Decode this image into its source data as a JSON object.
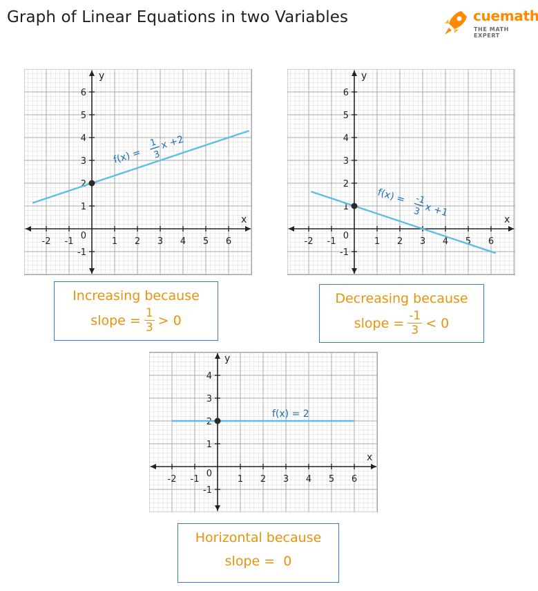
{
  "title": "Graph of Linear Equations in two Variables",
  "logo": {
    "name": "cuemath",
    "tagline": "THE MATH EXPERT",
    "icon": "rocket-icon",
    "color": "#ff8a00"
  },
  "graphs": [
    {
      "id": "increasing",
      "x_label": "x",
      "y_label": "y",
      "origin_label": "0",
      "x_ticks": [
        "-2",
        "-1",
        "1",
        "2",
        "3",
        "4",
        "5",
        "6"
      ],
      "y_ticks": [
        "-1",
        "1",
        "2",
        "3",
        "4",
        "5",
        "6"
      ],
      "equation": {
        "prefix": "f(x) =",
        "num": "1",
        "den": "3",
        "suffix": "x +2"
      },
      "line": {
        "slope": 0.3333,
        "intercept": 2,
        "x_from": -2.6,
        "x_to": 6.9
      },
      "point": [
        0,
        2
      ],
      "box": {
        "line1": "Increasing because",
        "prefix": "slope =",
        "num": "1",
        "den": "3",
        "suffix": "> 0"
      }
    },
    {
      "id": "decreasing",
      "x_label": "x",
      "y_label": "y",
      "origin_label": "0",
      "x_ticks": [
        "-2",
        "-1",
        "1",
        "2",
        "3",
        "4",
        "5",
        "6"
      ],
      "y_ticks": [
        "-1",
        "1",
        "2",
        "3",
        "4",
        "5",
        "6"
      ],
      "equation": {
        "prefix": "f(x) =",
        "num": "-1",
        "den": "3",
        "suffix": "x +1"
      },
      "line": {
        "slope": -0.3333,
        "intercept": 1,
        "x_from": -1.9,
        "x_to": 6.2
      },
      "point": [
        0,
        1
      ],
      "box": {
        "line1": "Decreasing because",
        "prefix": "slope =",
        "num": "-1",
        "den": "3",
        "suffix": "< 0"
      }
    },
    {
      "id": "horizontal",
      "x_label": "x",
      "y_label": "y",
      "origin_label": "0",
      "x_ticks": [
        "-2",
        "-1",
        "1",
        "2",
        "3",
        "4",
        "5",
        "6"
      ],
      "y_ticks": [
        "-1",
        "1",
        "2",
        "3",
        "4"
      ],
      "equation": {
        "text": "f(x) = 2"
      },
      "line": {
        "slope": 0,
        "intercept": 2,
        "x_from": -2,
        "x_to": 6
      },
      "point": [
        0,
        2
      ],
      "box": {
        "line1": "Horizontal because",
        "text": "slope =  0"
      }
    }
  ],
  "colors": {
    "line": "#5bbde8",
    "axis": "#222222",
    "grid_major": "#a8a8a8",
    "grid_minor": "#dedede",
    "box_border": "#2f7ec3",
    "box_text": "#e8930c",
    "equation": "#1a6fb5"
  }
}
